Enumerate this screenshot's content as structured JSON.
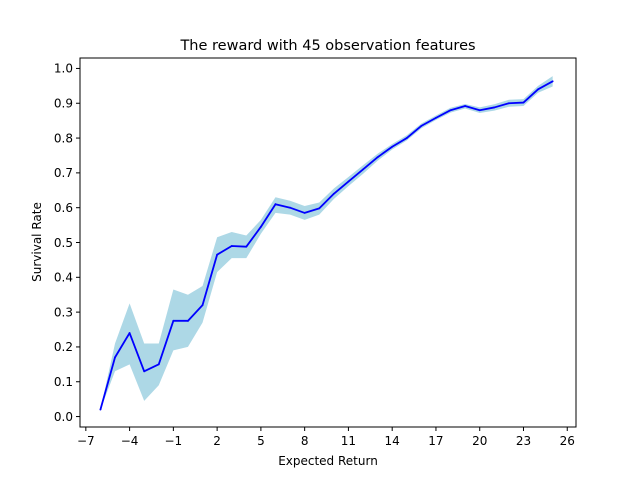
{
  "chart_data": {
    "type": "line",
    "title": "The reward with 45 observation features",
    "xlabel": "Expected Return",
    "ylabel": "Survival Rate",
    "xlim": [
      -7.4,
      26.6
    ],
    "ylim": [
      -0.03,
      1.03
    ],
    "xticks": [
      -7,
      -4,
      -1,
      2,
      5,
      8,
      11,
      14,
      17,
      20,
      23,
      26
    ],
    "xtick_labels": [
      "−7",
      "−4",
      "−1",
      "2",
      "5",
      "8",
      "11",
      "14",
      "17",
      "20",
      "23",
      "26"
    ],
    "yticks": [
      0.0,
      0.1,
      0.2,
      0.3,
      0.4,
      0.5,
      0.6,
      0.7,
      0.8,
      0.9,
      1.0
    ],
    "ytick_labels": [
      "0.0",
      "0.1",
      "0.2",
      "0.3",
      "0.4",
      "0.5",
      "0.6",
      "0.7",
      "0.8",
      "0.9",
      "1.0"
    ],
    "grid": false,
    "line_color": "#0000ff",
    "band_color": "#add8e6",
    "series": [
      {
        "x": [
          -6,
          -5,
          -4,
          -3,
          -2,
          -1,
          0,
          1,
          2,
          3,
          4,
          5,
          6,
          7,
          8,
          9,
          10,
          11,
          12,
          13,
          14,
          15,
          16,
          17,
          18,
          19,
          20,
          21,
          22,
          23,
          24,
          25
        ],
        "values": [
          0.02,
          0.17,
          0.24,
          0.13,
          0.15,
          0.275,
          0.275,
          0.32,
          0.465,
          0.49,
          0.488,
          0.545,
          0.61,
          0.6,
          0.585,
          0.598,
          0.64,
          0.675,
          0.71,
          0.745,
          0.775,
          0.8,
          0.835,
          0.858,
          0.88,
          0.892,
          0.88,
          0.888,
          0.9,
          0.902,
          0.94,
          0.963
        ],
        "lower": [
          0.02,
          0.13,
          0.15,
          0.045,
          0.09,
          0.19,
          0.2,
          0.27,
          0.415,
          0.455,
          0.455,
          0.525,
          0.585,
          0.58,
          0.565,
          0.58,
          0.625,
          0.662,
          0.697,
          0.735,
          0.767,
          0.793,
          0.828,
          0.852,
          0.873,
          0.885,
          0.872,
          0.879,
          0.89,
          0.892,
          0.93,
          0.948
        ],
        "upper": [
          0.02,
          0.21,
          0.325,
          0.21,
          0.21,
          0.365,
          0.35,
          0.375,
          0.515,
          0.53,
          0.52,
          0.565,
          0.63,
          0.62,
          0.605,
          0.615,
          0.655,
          0.688,
          0.722,
          0.755,
          0.783,
          0.808,
          0.842,
          0.865,
          0.887,
          0.898,
          0.888,
          0.897,
          0.91,
          0.912,
          0.95,
          0.978
        ]
      }
    ]
  }
}
